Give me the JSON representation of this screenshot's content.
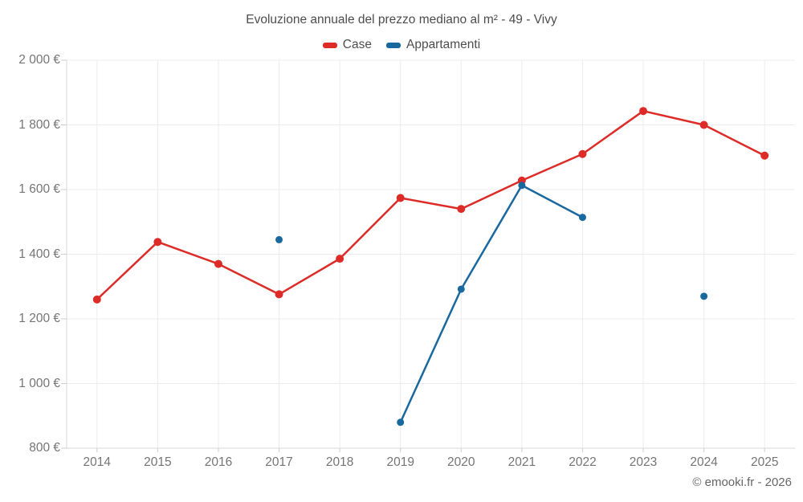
{
  "footer": {
    "credit": "© emooki.fr - 2026"
  },
  "chart_data": {
    "type": "line",
    "title": "Evoluzione annuale del prezzo mediano al m² - 49 - Vivy",
    "x": [
      2014,
      2015,
      2016,
      2017,
      2018,
      2019,
      2020,
      2021,
      2022,
      2023,
      2024,
      2025
    ],
    "series": [
      {
        "name": "Case",
        "color": "#dd2b27",
        "values": [
          1260,
          1438,
          1370,
          1276,
          1386,
          1574,
          1540,
          1628,
          1710,
          1843,
          1800,
          1705
        ]
      },
      {
        "name": "Appartamenti",
        "color": "#19699f",
        "values": [
          null,
          null,
          null,
          1445,
          null,
          880,
          1292,
          1613,
          1514,
          null,
          1270,
          null
        ]
      }
    ],
    "ylim": [
      800,
      2000
    ],
    "yticks": [
      {
        "value": 800,
        "label": "800 €"
      },
      {
        "value": 1000,
        "label": "1 000 €"
      },
      {
        "value": 1200,
        "label": "1 200 €"
      },
      {
        "value": 1400,
        "label": "1 400 €"
      },
      {
        "value": 1600,
        "label": "1 600 €"
      },
      {
        "value": 1800,
        "label": "1 800 €"
      },
      {
        "value": 2000,
        "label": "2 000 €"
      }
    ],
    "grid": true,
    "legend_position": "top",
    "colors": {
      "grid_line": "#ececec",
      "axis_line": "#d9d9d9",
      "tick_mark": "#cccccc",
      "tick_text": "#757575",
      "title_text": "#4d4d4d"
    }
  }
}
